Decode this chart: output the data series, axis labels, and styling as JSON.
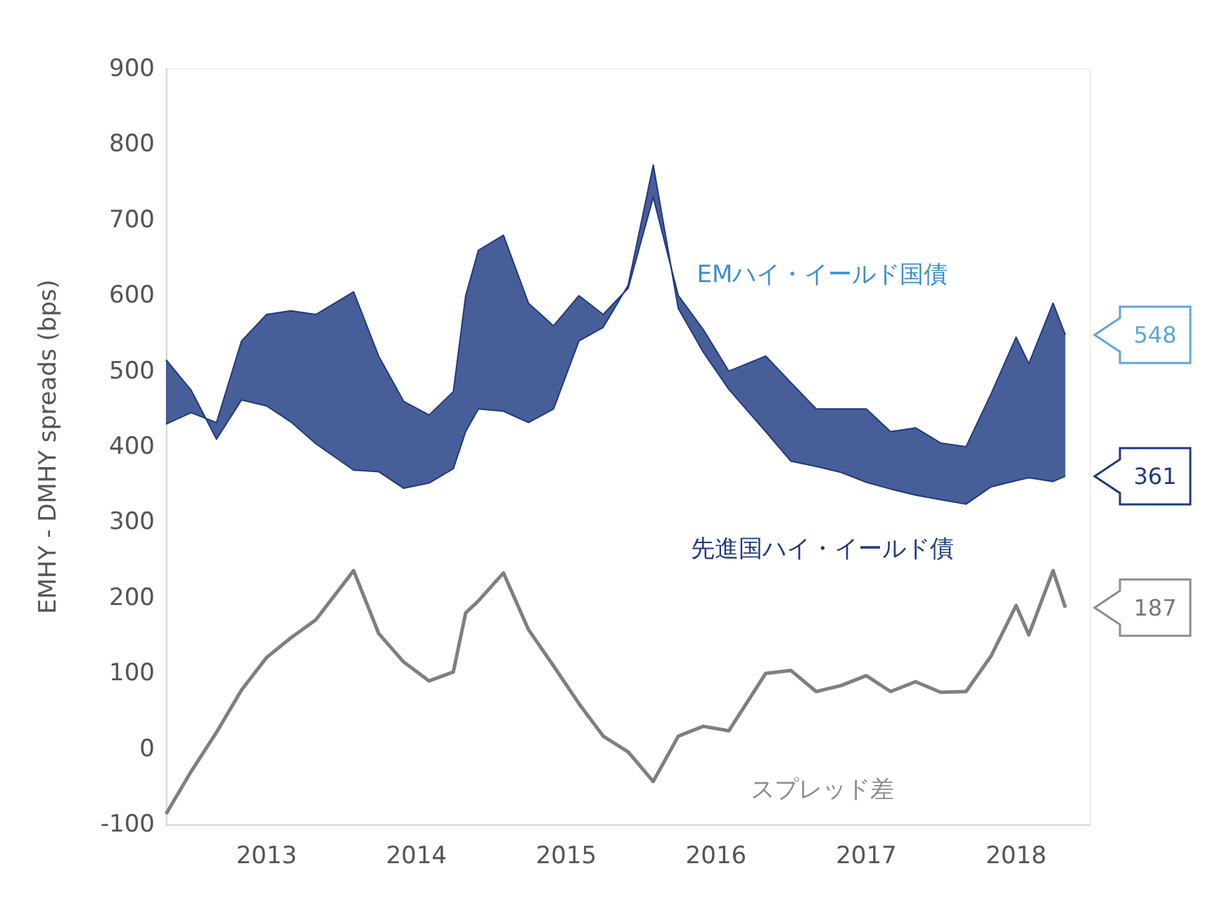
{
  "chart_data": {
    "type": "line",
    "ylabel": "EMHY - DMHY spreads (bps)",
    "x": [
      "2012-05",
      "2012-07",
      "2012-09",
      "2012-11",
      "2013-01",
      "2013-03",
      "2013-05",
      "2013-08",
      "2013-10",
      "2013-12",
      "2014-02",
      "2014-04",
      "2014-05",
      "2014-06",
      "2014-08",
      "2014-10",
      "2014-12",
      "2015-02",
      "2015-04",
      "2015-06",
      "2015-08",
      "2015-10",
      "2015-12",
      "2016-02",
      "2016-05",
      "2016-07",
      "2016-09",
      "2016-11",
      "2017-01",
      "2017-03",
      "2017-05",
      "2017-07",
      "2017-09",
      "2017-11",
      "2018-01",
      "2018-02",
      "2018-04",
      "2018-05"
    ],
    "series": [
      {
        "name": "EMハイ・イールド国債",
        "color": "#1f3a83",
        "values": [
          430,
          445,
          432,
          540,
          575,
          580,
          575,
          605,
          520,
          460,
          442,
          473,
          600,
          660,
          680,
          590,
          560,
          600,
          575,
          610,
          730,
          600,
          555,
          500,
          520,
          485,
          450,
          450,
          450,
          420,
          425,
          405,
          400,
          470,
          545,
          510,
          590,
          548
        ],
        "lower": [
          515,
          475,
          410,
          462,
          454,
          433,
          404,
          369,
          367,
          345,
          352,
          371,
          420,
          450,
          447,
          432,
          450,
          540,
          558,
          614,
          773,
          583,
          525,
          476,
          420,
          381,
          374,
          366,
          353,
          344,
          336,
          330,
          324,
          347,
          355,
          359,
          354,
          361
        ],
        "upper": [
          430,
          445,
          432,
          540,
          575,
          580,
          575,
          605,
          520,
          460,
          442,
          473,
          600,
          660,
          680,
          590,
          560,
          600,
          575,
          610,
          730,
          600,
          555,
          500,
          520,
          485,
          450,
          450,
          450,
          420,
          425,
          405,
          400,
          470,
          545,
          510,
          590,
          548
        ]
      },
      {
        "name": "先進国ハイ・イールド債",
        "color": "#1f3a83",
        "values": [
          515,
          475,
          410,
          462,
          454,
          433,
          404,
          369,
          367,
          345,
          352,
          371,
          420,
          450,
          447,
          432,
          450,
          540,
          558,
          614,
          773,
          583,
          525,
          476,
          420,
          381,
          374,
          366,
          353,
          344,
          336,
          330,
          324,
          347,
          355,
          359,
          354,
          361
        ]
      },
      {
        "name": "スプレッド差",
        "color": "#7f7f7f",
        "values": [
          -86,
          -30,
          22,
          78,
          121,
          147,
          171,
          236,
          153,
          115,
          90,
          102,
          180,
          196,
          233,
          158,
          110,
          60,
          17,
          -4,
          -43,
          17,
          30,
          24,
          100,
          104,
          76,
          84,
          97,
          76,
          89,
          75,
          76,
          123,
          190,
          151,
          236,
          187
        ]
      }
    ],
    "annotations": [
      "548",
      "361",
      "187"
    ],
    "xlim": [
      "2012-05",
      "2018-07"
    ],
    "xticks": [
      "2013",
      "2014",
      "2015",
      "2016",
      "2017",
      "2018"
    ],
    "ylim": [
      -100,
      900
    ],
    "yticks": [
      -100,
      0,
      100,
      200,
      300,
      400,
      500,
      600,
      700,
      800,
      900
    ],
    "legend": false,
    "grid": false,
    "marker": "none",
    "line_style": "solid"
  }
}
